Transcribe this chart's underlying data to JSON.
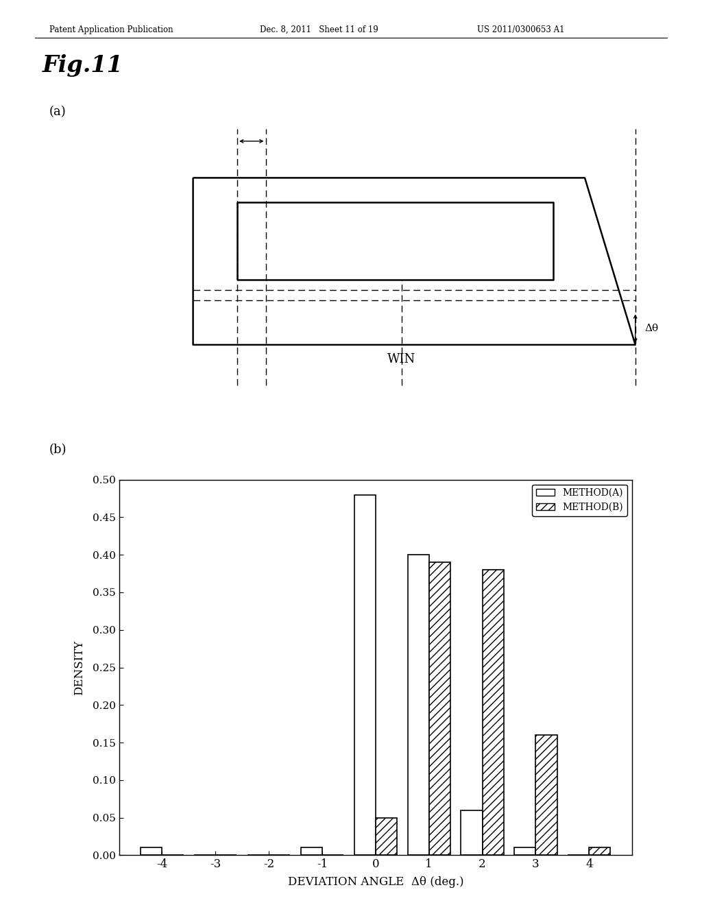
{
  "header_left": "Patent Application Publication",
  "header_mid": "Dec. 8, 2011   Sheet 11 of 19",
  "header_right": "US 2011/0300653 A1",
  "fig_title": "Fig.11",
  "panel_a_label": "(a)",
  "panel_b_label": "(b)",
  "win_label": "WIN",
  "delta_theta_label": "Δθ",
  "method_a_label": "METHOD(A)",
  "method_b_label": "METHOD(B)",
  "xlabel": "DEVIATION ANGLE  Δθ (deg.)",
  "ylabel": "DENSITY",
  "ylim": [
    0.0,
    0.5
  ],
  "yticks": [
    0.0,
    0.05,
    0.1,
    0.15,
    0.2,
    0.25,
    0.3,
    0.35,
    0.4,
    0.45,
    0.5
  ],
  "xticks": [
    -4,
    -3,
    -2,
    -1,
    0,
    1,
    2,
    3,
    4
  ],
  "method_a_data": {
    "x": [
      -4,
      -3,
      -2,
      -1,
      0,
      1,
      2,
      3,
      4
    ],
    "y": [
      0.01,
      0.0,
      0.0,
      0.01,
      0.48,
      0.4,
      0.06,
      0.01,
      0.0
    ]
  },
  "method_b_data": {
    "x": [
      -4,
      -3,
      -2,
      -1,
      0,
      1,
      2,
      3,
      4
    ],
    "y": [
      0.0,
      0.0,
      0.0,
      0.0,
      0.05,
      0.39,
      0.38,
      0.16,
      0.01
    ]
  },
  "bar_width": 0.4,
  "background_color": "#ffffff",
  "bar_color_a": "#ffffff",
  "bar_color_b": "#ffffff",
  "bar_edge_color": "#000000"
}
